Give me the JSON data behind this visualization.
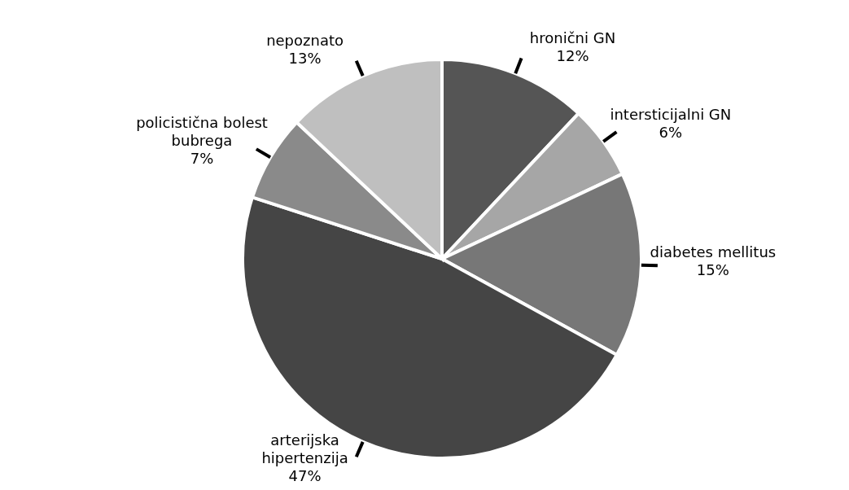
{
  "chart_data": {
    "type": "pie",
    "categories": [
      "hronični GN",
      "intersticijalni GN",
      "diabetes mellitus",
      "arterijska hipertenzija",
      "policistična bolest bubrega",
      "nepoznato"
    ],
    "values": [
      12,
      6,
      15,
      47,
      7,
      13
    ],
    "colors": [
      "#555555",
      "#a6a6a6",
      "#777777",
      "#454545",
      "#8a8a8a",
      "#bfbfbf"
    ],
    "value_labels": [
      "12%",
      "6%",
      "15%",
      "47%",
      "7%",
      "13%"
    ]
  }
}
